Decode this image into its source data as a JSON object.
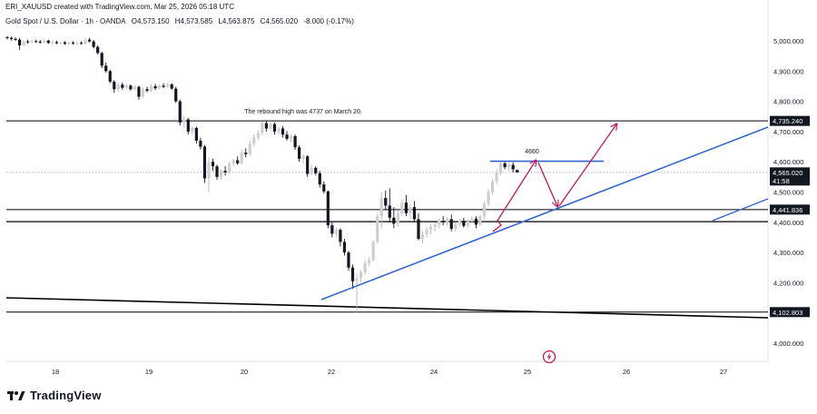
{
  "header": {
    "author_line": "ERI_XAUUSD created with TradingView.com, Mar 25, 2026 05:18 UTC",
    "instrument": "Gold Spot / U.S. Dollar · 1h · OANDA",
    "open": "O4,573.150",
    "high": "H4,573.585",
    "low": "L4,563.875",
    "close": "C4,565.020",
    "change": "-8.000 (-0.17%)"
  },
  "logo": {
    "text": "TradingView",
    "icon": "tradingview-logo-icon"
  },
  "center_icon": "lightning-icon",
  "colors": {
    "up": "#cfcfcf",
    "down": "#131722",
    "level": "#000000",
    "trend": "#3366cc",
    "arrow": "#c2185b",
    "last": "#9e9e9e",
    "background": "#ffffff"
  },
  "chart_data": {
    "type": "candlestick",
    "x_ticks": [
      "18",
      "19",
      "20",
      "22",
      "24",
      "25",
      "26",
      "27"
    ],
    "y_ticks": [
      "5,000.000",
      "4,900.000",
      "4,800.000",
      "4,700.000",
      "4,600.000",
      "4,500.000",
      "4,400.000",
      "4,300.000",
      "4,200.000",
      "4,100.000",
      "4,000.000"
    ],
    "ylim": [
      3970,
      5020
    ],
    "grid": false,
    "candles": [
      {
        "o": 5012,
        "h": 5016,
        "l": 5005,
        "c": 5010
      },
      {
        "o": 5010,
        "h": 5014,
        "l": 5001,
        "c": 5006
      },
      {
        "o": 5006,
        "h": 5012,
        "l": 5000,
        "c": 5004
      },
      {
        "o": 5004,
        "h": 5010,
        "l": 4970,
        "c": 4985
      },
      {
        "o": 4985,
        "h": 5002,
        "l": 4982,
        "c": 4998
      },
      {
        "o": 4998,
        "h": 5004,
        "l": 4990,
        "c": 4996
      },
      {
        "o": 4996,
        "h": 5003,
        "l": 4992,
        "c": 4999
      },
      {
        "o": 4999,
        "h": 5004,
        "l": 4993,
        "c": 4997
      },
      {
        "o": 4997,
        "h": 5003,
        "l": 4992,
        "c": 4995
      },
      {
        "o": 4995,
        "h": 5006,
        "l": 4992,
        "c": 5001
      },
      {
        "o": 5001,
        "h": 5004,
        "l": 4990,
        "c": 4993
      },
      {
        "o": 4993,
        "h": 5001,
        "l": 4988,
        "c": 4996
      },
      {
        "o": 4996,
        "h": 5001,
        "l": 4989,
        "c": 4992
      },
      {
        "o": 4992,
        "h": 4998,
        "l": 4988,
        "c": 4995
      },
      {
        "o": 4995,
        "h": 4999,
        "l": 4987,
        "c": 4990
      },
      {
        "o": 4990,
        "h": 4998,
        "l": 4986,
        "c": 4994
      },
      {
        "o": 4994,
        "h": 4999,
        "l": 4988,
        "c": 4991
      },
      {
        "o": 4991,
        "h": 4997,
        "l": 4986,
        "c": 4993
      },
      {
        "o": 4993,
        "h": 4998,
        "l": 4988,
        "c": 4990
      },
      {
        "o": 4990,
        "h": 5008,
        "l": 4988,
        "c": 5004
      },
      {
        "o": 5004,
        "h": 5010,
        "l": 4995,
        "c": 4998
      },
      {
        "o": 4998,
        "h": 5003,
        "l": 4975,
        "c": 4980
      },
      {
        "o": 4980,
        "h": 4985,
        "l": 4955,
        "c": 4960
      },
      {
        "o": 4960,
        "h": 4964,
        "l": 4910,
        "c": 4918
      },
      {
        "o": 4918,
        "h": 4928,
        "l": 4895,
        "c": 4900
      },
      {
        "o": 4900,
        "h": 4905,
        "l": 4860,
        "c": 4865
      },
      {
        "o": 4865,
        "h": 4870,
        "l": 4828,
        "c": 4840
      },
      {
        "o": 4840,
        "h": 4860,
        "l": 4832,
        "c": 4855
      },
      {
        "o": 4855,
        "h": 4862,
        "l": 4838,
        "c": 4845
      },
      {
        "o": 4845,
        "h": 4858,
        "l": 4840,
        "c": 4852
      },
      {
        "o": 4852,
        "h": 4856,
        "l": 4835,
        "c": 4840
      },
      {
        "o": 4840,
        "h": 4853,
        "l": 4836,
        "c": 4848
      },
      {
        "o": 4848,
        "h": 4852,
        "l": 4805,
        "c": 4815
      },
      {
        "o": 4815,
        "h": 4845,
        "l": 4812,
        "c": 4840
      },
      {
        "o": 4840,
        "h": 4848,
        "l": 4830,
        "c": 4835
      },
      {
        "o": 4835,
        "h": 4855,
        "l": 4831,
        "c": 4850
      },
      {
        "o": 4850,
        "h": 4858,
        "l": 4838,
        "c": 4843
      },
      {
        "o": 4843,
        "h": 4857,
        "l": 4840,
        "c": 4852
      },
      {
        "o": 4852,
        "h": 4860,
        "l": 4844,
        "c": 4848
      },
      {
        "o": 4848,
        "h": 4862,
        "l": 4845,
        "c": 4856
      },
      {
        "o": 4856,
        "h": 4860,
        "l": 4838,
        "c": 4842
      },
      {
        "o": 4842,
        "h": 4848,
        "l": 4795,
        "c": 4800
      },
      {
        "o": 4800,
        "h": 4805,
        "l": 4720,
        "c": 4730
      },
      {
        "o": 4730,
        "h": 4750,
        "l": 4712,
        "c": 4740
      },
      {
        "o": 4740,
        "h": 4745,
        "l": 4690,
        "c": 4700
      },
      {
        "o": 4700,
        "h": 4718,
        "l": 4690,
        "c": 4712
      },
      {
        "o": 4712,
        "h": 4716,
        "l": 4660,
        "c": 4670
      },
      {
        "o": 4670,
        "h": 4680,
        "l": 4640,
        "c": 4650
      },
      {
        "o": 4650,
        "h": 4655,
        "l": 4530,
        "c": 4545
      },
      {
        "o": 4545,
        "h": 4615,
        "l": 4500,
        "c": 4600
      },
      {
        "o": 4600,
        "h": 4610,
        "l": 4570,
        "c": 4585
      },
      {
        "o": 4585,
        "h": 4590,
        "l": 4540,
        "c": 4550
      },
      {
        "o": 4550,
        "h": 4575,
        "l": 4540,
        "c": 4570
      },
      {
        "o": 4570,
        "h": 4585,
        "l": 4555,
        "c": 4565
      },
      {
        "o": 4565,
        "h": 4600,
        "l": 4560,
        "c": 4595
      },
      {
        "o": 4595,
        "h": 4610,
        "l": 4585,
        "c": 4605
      },
      {
        "o": 4605,
        "h": 4618,
        "l": 4590,
        "c": 4595
      },
      {
        "o": 4595,
        "h": 4640,
        "l": 4590,
        "c": 4630
      },
      {
        "o": 4630,
        "h": 4645,
        "l": 4615,
        "c": 4625
      },
      {
        "o": 4625,
        "h": 4670,
        "l": 4620,
        "c": 4660
      },
      {
        "o": 4660,
        "h": 4690,
        "l": 4650,
        "c": 4680
      },
      {
        "o": 4680,
        "h": 4705,
        "l": 4670,
        "c": 4695
      },
      {
        "o": 4695,
        "h": 4733,
        "l": 4688,
        "c": 4728
      },
      {
        "o": 4728,
        "h": 4737,
        "l": 4700,
        "c": 4710
      },
      {
        "o": 4710,
        "h": 4735,
        "l": 4705,
        "c": 4725
      },
      {
        "o": 4725,
        "h": 4730,
        "l": 4690,
        "c": 4700
      },
      {
        "o": 4700,
        "h": 4715,
        "l": 4690,
        "c": 4710
      },
      {
        "o": 4710,
        "h": 4718,
        "l": 4680,
        "c": 4690
      },
      {
        "o": 4690,
        "h": 4702,
        "l": 4670,
        "c": 4676
      },
      {
        "o": 4676,
        "h": 4690,
        "l": 4665,
        "c": 4685
      },
      {
        "o": 4685,
        "h": 4690,
        "l": 4640,
        "c": 4648
      },
      {
        "o": 4648,
        "h": 4655,
        "l": 4600,
        "c": 4610
      },
      {
        "o": 4610,
        "h": 4625,
        "l": 4595,
        "c": 4618
      },
      {
        "o": 4618,
        "h": 4622,
        "l": 4550,
        "c": 4560
      },
      {
        "o": 4560,
        "h": 4590,
        "l": 4555,
        "c": 4580
      },
      {
        "o": 4580,
        "h": 4585,
        "l": 4555,
        "c": 4562
      },
      {
        "o": 4562,
        "h": 4570,
        "l": 4515,
        "c": 4525
      },
      {
        "o": 4525,
        "h": 4535,
        "l": 4495,
        "c": 4502
      },
      {
        "o": 4502,
        "h": 4505,
        "l": 4380,
        "c": 4390
      },
      {
        "o": 4390,
        "h": 4400,
        "l": 4350,
        "c": 4362
      },
      {
        "o": 4362,
        "h": 4380,
        "l": 4350,
        "c": 4375
      },
      {
        "o": 4375,
        "h": 4380,
        "l": 4320,
        "c": 4335
      },
      {
        "o": 4335,
        "h": 4345,
        "l": 4290,
        "c": 4300
      },
      {
        "o": 4300,
        "h": 4305,
        "l": 4240,
        "c": 4250
      },
      {
        "o": 4250,
        "h": 4260,
        "l": 4180,
        "c": 4205
      },
      {
        "o": 4205,
        "h": 4230,
        "l": 4100,
        "c": 4215
      },
      {
        "o": 4215,
        "h": 4240,
        "l": 4200,
        "c": 4235
      },
      {
        "o": 4235,
        "h": 4275,
        "l": 4225,
        "c": 4265
      },
      {
        "o": 4265,
        "h": 4285,
        "l": 4255,
        "c": 4275
      },
      {
        "o": 4275,
        "h": 4340,
        "l": 4270,
        "c": 4335
      },
      {
        "o": 4335,
        "h": 4430,
        "l": 4330,
        "c": 4420
      },
      {
        "o": 4420,
        "h": 4500,
        "l": 4380,
        "c": 4480
      },
      {
        "o": 4480,
        "h": 4505,
        "l": 4440,
        "c": 4455
      },
      {
        "o": 4455,
        "h": 4512,
        "l": 4400,
        "c": 4415
      },
      {
        "o": 4415,
        "h": 4450,
        "l": 4380,
        "c": 4395
      },
      {
        "o": 4395,
        "h": 4440,
        "l": 4385,
        "c": 4430
      },
      {
        "o": 4430,
        "h": 4475,
        "l": 4420,
        "c": 4465
      },
      {
        "o": 4465,
        "h": 4490,
        "l": 4420,
        "c": 4430
      },
      {
        "o": 4430,
        "h": 4460,
        "l": 4410,
        "c": 4450
      },
      {
        "o": 4450,
        "h": 4470,
        "l": 4400,
        "c": 4410
      },
      {
        "o": 4410,
        "h": 4430,
        "l": 4340,
        "c": 4345
      },
      {
        "o": 4345,
        "h": 4370,
        "l": 4330,
        "c": 4360
      },
      {
        "o": 4360,
        "h": 4385,
        "l": 4350,
        "c": 4375
      },
      {
        "o": 4375,
        "h": 4395,
        "l": 4360,
        "c": 4385
      },
      {
        "o": 4385,
        "h": 4400,
        "l": 4370,
        "c": 4392
      },
      {
        "o": 4392,
        "h": 4412,
        "l": 4380,
        "c": 4405
      },
      {
        "o": 4405,
        "h": 4420,
        "l": 4390,
        "c": 4400
      },
      {
        "o": 4400,
        "h": 4418,
        "l": 4388,
        "c": 4410
      },
      {
        "o": 4410,
        "h": 4425,
        "l": 4370,
        "c": 4378
      },
      {
        "o": 4378,
        "h": 4400,
        "l": 4370,
        "c": 4395
      },
      {
        "o": 4395,
        "h": 4412,
        "l": 4385,
        "c": 4405
      },
      {
        "o": 4405,
        "h": 4415,
        "l": 4382,
        "c": 4388
      },
      {
        "o": 4388,
        "h": 4410,
        "l": 4380,
        "c": 4403
      },
      {
        "o": 4403,
        "h": 4420,
        "l": 4395,
        "c": 4412
      },
      {
        "o": 4412,
        "h": 4420,
        "l": 4380,
        "c": 4392
      },
      {
        "o": 4392,
        "h": 4425,
        "l": 4388,
        "c": 4420
      },
      {
        "o": 4420,
        "h": 4470,
        "l": 4410,
        "c": 4460
      },
      {
        "o": 4460,
        "h": 4510,
        "l": 4452,
        "c": 4500
      },
      {
        "o": 4500,
        "h": 4545,
        "l": 4490,
        "c": 4535
      },
      {
        "o": 4535,
        "h": 4575,
        "l": 4525,
        "c": 4565
      },
      {
        "o": 4565,
        "h": 4600,
        "l": 4555,
        "c": 4595
      },
      {
        "o": 4595,
        "h": 4603,
        "l": 4575,
        "c": 4582
      },
      {
        "o": 4582,
        "h": 4595,
        "l": 4570,
        "c": 4590
      },
      {
        "o": 4590,
        "h": 4598,
        "l": 4565,
        "c": 4575
      },
      {
        "o": 4573,
        "h": 4574,
        "l": 4564,
        "c": 4565
      }
    ],
    "levels": [
      {
        "value": 4735.24,
        "label": "4,735.240"
      },
      {
        "value": 4441.836,
        "label": "4,441.836"
      },
      {
        "value": 4102.803,
        "label": "4,102.803"
      }
    ],
    "current_price": {
      "value": 4565.02,
      "label": "4,565.020",
      "countdown": "41:58"
    },
    "annotations": [
      {
        "text": "The rebound high was 4737 on March 20."
      },
      {
        "text": "4660"
      }
    ]
  }
}
